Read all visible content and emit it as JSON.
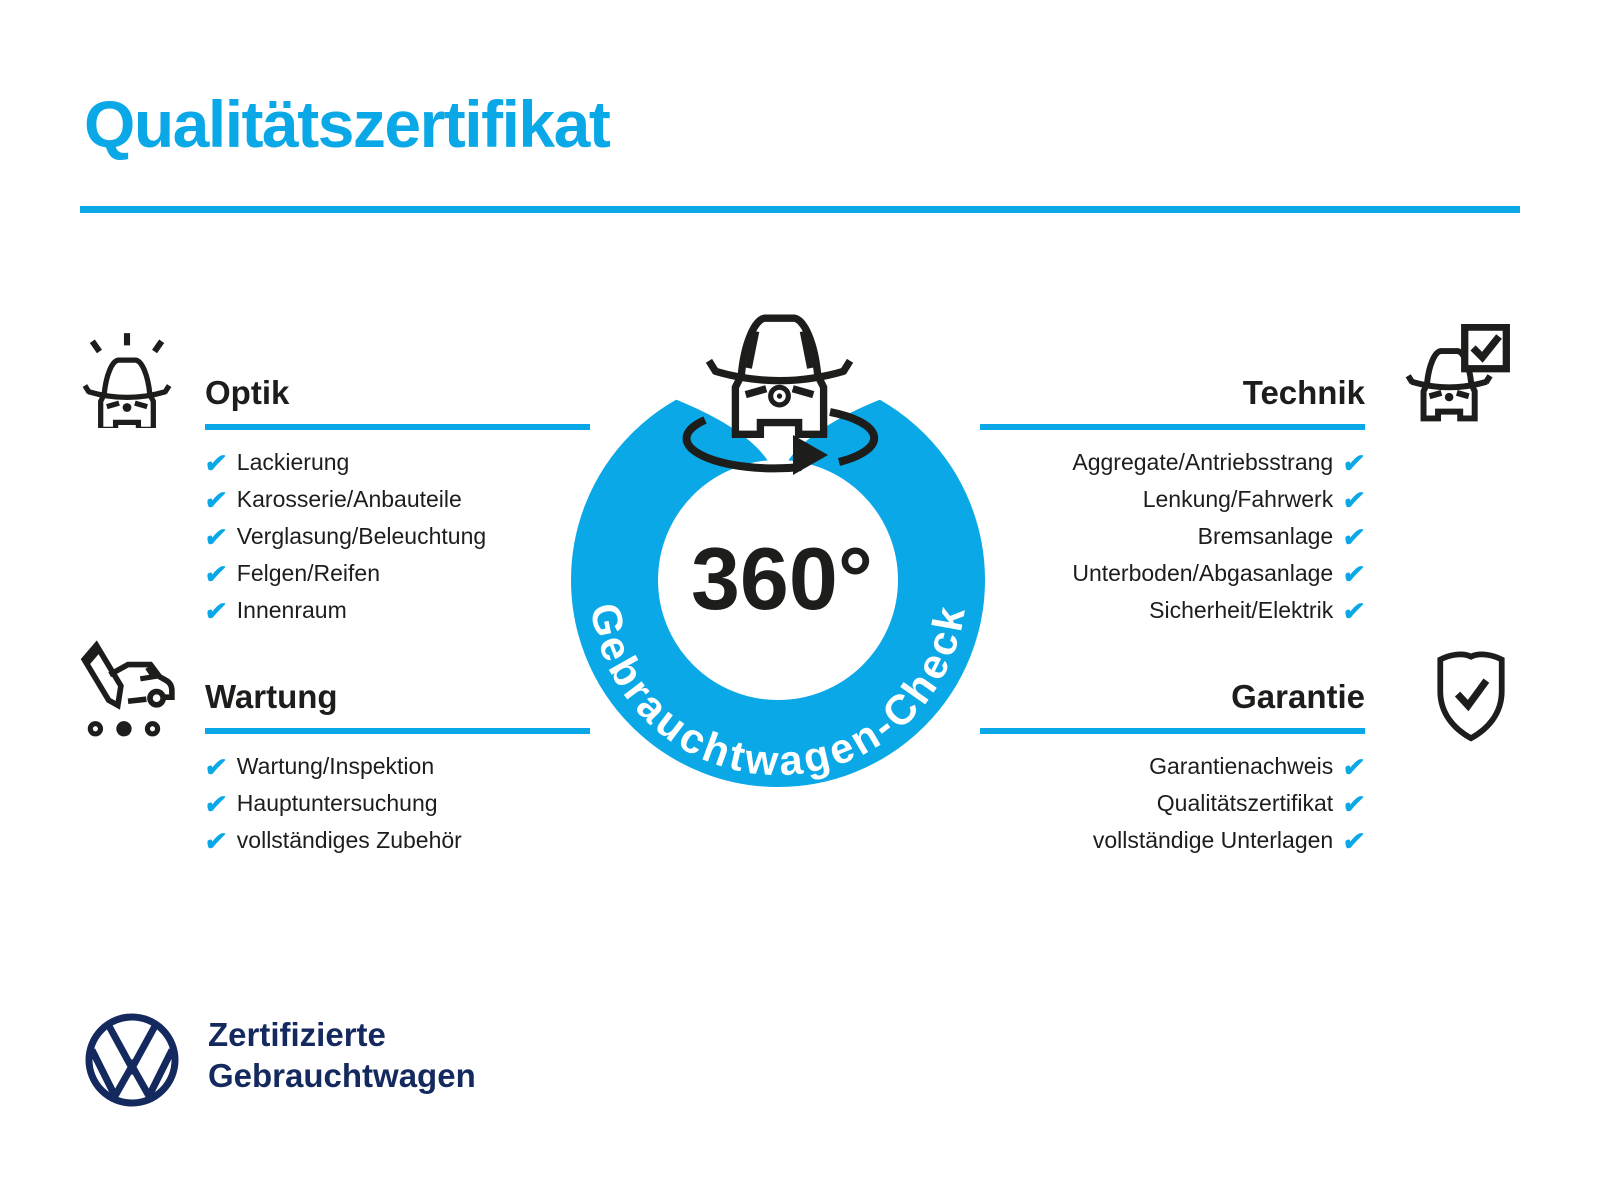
{
  "title": "Qualitätszertifikat",
  "checkmark": "✔",
  "colors": {
    "accent_blue": "#0aa8e6",
    "navy": "#14295e",
    "ink": "#1d1d1b"
  },
  "center": {
    "value": "360°",
    "ring_label": "Gebrauchtwagen-Check",
    "icon": "car-front-rotate-icon"
  },
  "sections": [
    {
      "id": "optik",
      "title": "Optik",
      "icon": "car-shine-icon",
      "side": "left",
      "items": [
        "Lackierung",
        "Karosserie/Anbauteile",
        "Verglasung/Beleuchtung",
        "Felgen/Reifen",
        "Innenraum"
      ]
    },
    {
      "id": "technik",
      "title": "Technik",
      "icon": "car-checklist-icon",
      "side": "right",
      "items": [
        "Aggregate/Antriebsstrang",
        "Lenkung/Fahrwerk",
        "Bremsanlage",
        "Unterboden/Abgasanlage",
        "Sicherheit/Elektrik"
      ]
    },
    {
      "id": "wartung",
      "title": "Wartung",
      "icon": "pencil-car-icon",
      "side": "left",
      "items": [
        "Wartung/Inspektion",
        "Hauptuntersuchung",
        "vollständiges Zubehör"
      ]
    },
    {
      "id": "garantie",
      "title": "Garantie",
      "icon": "shield-check-icon",
      "side": "right",
      "items": [
        "Garantienachweis",
        "Qualitätszertifikat",
        "vollständige Unterlagen"
      ]
    }
  ],
  "footer": {
    "logo": "vw-logo",
    "line1": "Zertifizierte",
    "line2": "Gebrauchtwagen"
  }
}
